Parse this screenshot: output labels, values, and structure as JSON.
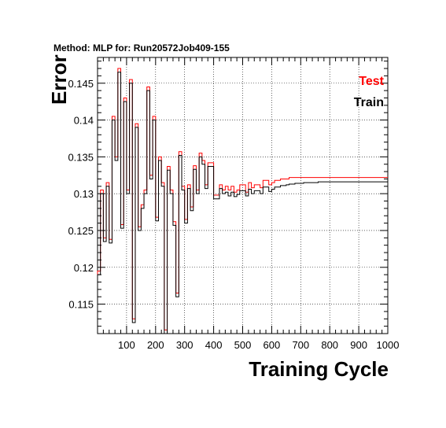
{
  "chart_data": {
    "type": "line",
    "title": "Method: MLP for: Run20572Job409-155",
    "xlabel": "Training Cycle",
    "ylabel": "Error",
    "xlim": [
      0,
      1000
    ],
    "ylim": [
      0.111,
      0.1485
    ],
    "x_ticks": [
      100,
      200,
      300,
      400,
      500,
      600,
      700,
      800,
      900,
      1000
    ],
    "y_ticks": [
      0.115,
      0.12,
      0.125,
      0.13,
      0.135,
      0.14,
      0.145
    ],
    "grid": true,
    "legend_position": "top-right",
    "series": [
      {
        "name": "Test",
        "color": "#ff0000",
        "x": [
          0,
          10,
          20,
          30,
          40,
          50,
          60,
          70,
          80,
          90,
          100,
          110,
          120,
          130,
          140,
          150,
          160,
          170,
          180,
          190,
          200,
          210,
          220,
          230,
          240,
          250,
          260,
          270,
          280,
          290,
          300,
          310,
          320,
          330,
          340,
          350,
          360,
          370,
          380,
          390,
          400,
          410,
          420,
          430,
          440,
          450,
          460,
          470,
          480,
          490,
          500,
          510,
          520,
          530,
          540,
          550,
          560,
          570,
          580,
          590,
          600,
          610,
          620,
          630,
          640,
          650,
          660,
          670,
          680,
          690,
          700,
          710,
          720,
          730,
          740,
          750,
          760,
          770,
          780,
          790,
          800,
          810,
          820,
          830,
          840,
          850,
          860,
          870,
          880,
          890,
          900,
          910,
          920,
          930,
          940,
          950,
          960,
          970,
          980,
          990
        ],
        "y": [
          0.1195,
          0.1305,
          0.124,
          0.1315,
          0.1238,
          0.1405,
          0.135,
          0.147,
          0.1258,
          0.143,
          0.1305,
          0.1455,
          0.113,
          0.1395,
          0.1255,
          0.1285,
          0.1305,
          0.1445,
          0.1325,
          0.1405,
          0.1268,
          0.135,
          0.1315,
          0.1115,
          0.1337,
          0.1305,
          0.1262,
          0.1165,
          0.1357,
          0.131,
          0.1265,
          0.1312,
          0.1282,
          0.1338,
          0.1305,
          0.1355,
          0.1345,
          0.1312,
          0.1342,
          0.1342,
          0.1298,
          0.1298,
          0.1312,
          0.1305,
          0.131,
          0.1305,
          0.131,
          0.1302,
          0.1305,
          0.1312,
          0.1312,
          0.1302,
          0.1315,
          0.1308,
          0.1312,
          0.1312,
          0.1308,
          0.1318,
          0.1318,
          0.1312,
          0.1315,
          0.1318,
          0.1318,
          0.132,
          0.132,
          0.132,
          0.1322,
          0.1322,
          0.1322,
          0.1322,
          0.1322,
          0.1322,
          0.1322,
          0.1322,
          0.1322,
          0.1322,
          0.1322,
          0.1322,
          0.1322,
          0.1322,
          0.1322,
          0.1322,
          0.1322,
          0.1322,
          0.1322,
          0.1322,
          0.1322,
          0.1322,
          0.1322,
          0.1322,
          0.1322,
          0.1322,
          0.1322,
          0.1322,
          0.1322,
          0.1322,
          0.1322,
          0.1322,
          0.1322,
          0.1322
        ]
      },
      {
        "name": "Train",
        "color": "#000000",
        "x": [
          0,
          10,
          20,
          30,
          40,
          50,
          60,
          70,
          80,
          90,
          100,
          110,
          120,
          130,
          140,
          150,
          160,
          170,
          180,
          190,
          200,
          210,
          220,
          230,
          240,
          250,
          260,
          270,
          280,
          290,
          300,
          310,
          320,
          330,
          340,
          350,
          360,
          370,
          380,
          390,
          400,
          410,
          420,
          430,
          440,
          450,
          460,
          470,
          480,
          490,
          500,
          510,
          520,
          530,
          540,
          550,
          560,
          570,
          580,
          590,
          600,
          610,
          620,
          630,
          640,
          650,
          660,
          670,
          680,
          690,
          700,
          710,
          720,
          730,
          740,
          750,
          760,
          770,
          780,
          790,
          800,
          810,
          820,
          830,
          840,
          850,
          860,
          870,
          880,
          890,
          900,
          910,
          920,
          930,
          940,
          950,
          960,
          970,
          980,
          990
        ],
        "y": [
          0.119,
          0.13,
          0.1235,
          0.131,
          0.1233,
          0.14,
          0.1345,
          0.1465,
          0.1253,
          0.1425,
          0.13,
          0.145,
          0.1125,
          0.139,
          0.125,
          0.128,
          0.13,
          0.144,
          0.132,
          0.14,
          0.1263,
          0.1345,
          0.131,
          0.111,
          0.1332,
          0.13,
          0.1257,
          0.116,
          0.1352,
          0.1305,
          0.126,
          0.1307,
          0.1277,
          0.1333,
          0.13,
          0.135,
          0.134,
          0.1307,
          0.1337,
          0.1337,
          0.1293,
          0.1293,
          0.1307,
          0.13,
          0.1302,
          0.1297,
          0.1302,
          0.1296,
          0.1299,
          0.1304,
          0.1304,
          0.1297,
          0.1306,
          0.13,
          0.1304,
          0.1304,
          0.13,
          0.1309,
          0.1309,
          0.1303,
          0.1306,
          0.1309,
          0.1309,
          0.1311,
          0.1311,
          0.1312,
          0.1313,
          0.1313,
          0.1314,
          0.1314,
          0.1314,
          0.1315,
          0.1315,
          0.1315,
          0.1315,
          0.1315,
          0.1316,
          0.1316,
          0.1316,
          0.1316,
          0.1316,
          0.1316,
          0.1316,
          0.1316,
          0.1316,
          0.1316,
          0.1316,
          0.1316,
          0.1316,
          0.1316,
          0.1316,
          0.1316,
          0.1316,
          0.1316,
          0.1316,
          0.1316,
          0.1316,
          0.1316,
          0.1316,
          0.1316
        ]
      }
    ]
  }
}
